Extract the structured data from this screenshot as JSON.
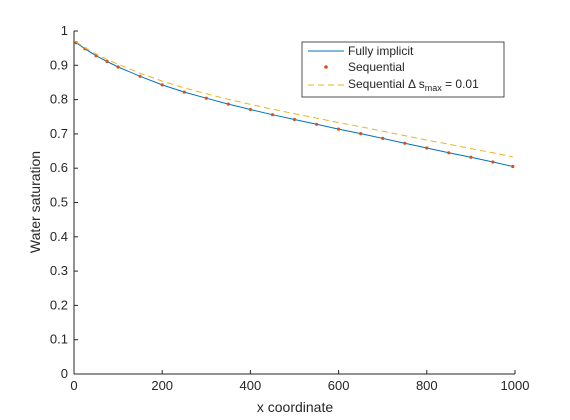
{
  "chart_data": {
    "type": "line",
    "title": "",
    "xlabel": "x coordinate",
    "ylabel": "Water saturation",
    "xlim": [
      0,
      1000
    ],
    "ylim": [
      0,
      1
    ],
    "xticks": [
      0,
      200,
      400,
      600,
      800,
      1000
    ],
    "yticks": [
      0,
      0.1,
      0.2,
      0.3,
      0.4,
      0.5,
      0.6,
      0.7,
      0.8,
      0.9,
      1
    ],
    "grid": false,
    "legend_position": "top-right",
    "series": [
      {
        "name": "Fully implicit",
        "style": "solid-line",
        "color": "#0072bd",
        "x": [
          5,
          25,
          50,
          75,
          100,
          150,
          200,
          250,
          300,
          350,
          400,
          450,
          500,
          550,
          600,
          650,
          700,
          750,
          800,
          850,
          900,
          950,
          995
        ],
        "y": [
          0.966,
          0.948,
          0.928,
          0.911,
          0.895,
          0.868,
          0.843,
          0.822,
          0.804,
          0.787,
          0.771,
          0.756,
          0.742,
          0.728,
          0.714,
          0.701,
          0.687,
          0.673,
          0.659,
          0.645,
          0.632,
          0.618,
          0.605
        ]
      },
      {
        "name": "Sequential",
        "style": "dots",
        "color": "#d95319",
        "x": [
          5,
          25,
          50,
          75,
          100,
          150,
          200,
          250,
          300,
          350,
          400,
          450,
          500,
          550,
          600,
          650,
          700,
          750,
          800,
          850,
          900,
          950,
          995
        ],
        "y": [
          0.966,
          0.948,
          0.928,
          0.911,
          0.895,
          0.868,
          0.843,
          0.822,
          0.804,
          0.787,
          0.771,
          0.756,
          0.742,
          0.728,
          0.714,
          0.701,
          0.687,
          0.673,
          0.659,
          0.645,
          0.632,
          0.618,
          0.605
        ]
      },
      {
        "name": "Sequential Δ s_max = 0.01",
        "style": "dashed-line",
        "color": "#edb120",
        "x": [
          5,
          25,
          50,
          75,
          100,
          150,
          200,
          250,
          300,
          350,
          400,
          450,
          500,
          550,
          600,
          650,
          700,
          750,
          800,
          850,
          900,
          950,
          995
        ],
        "y": [
          0.968,
          0.951,
          0.933,
          0.917,
          0.903,
          0.877,
          0.854,
          0.834,
          0.817,
          0.801,
          0.786,
          0.772,
          0.759,
          0.746,
          0.733,
          0.721,
          0.708,
          0.695,
          0.682,
          0.67,
          0.657,
          0.645,
          0.633
        ]
      }
    ]
  },
  "legend": {
    "entries": [
      {
        "text": "Fully implicit"
      },
      {
        "text": "Sequential"
      },
      {
        "text_main": "Sequential Δ s",
        "text_sub": "max",
        "text_tail": " = 0.01"
      }
    ]
  },
  "colors": {
    "axis": "#262626",
    "fully_implicit": "#0072bd",
    "sequential": "#d95319",
    "sequential_dsmax": "#edb120"
  }
}
